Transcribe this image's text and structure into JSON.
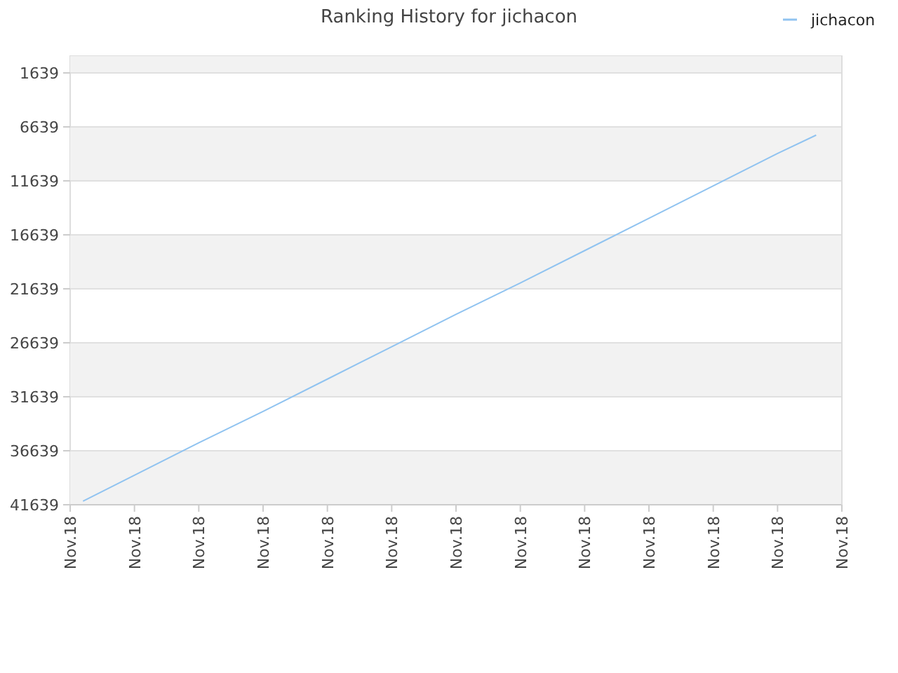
{
  "chart_data": {
    "type": "line",
    "title": "Ranking History for jichacon",
    "categories": [
      "Nov.18",
      null,
      null,
      null,
      null,
      "Nov.18",
      null,
      null,
      null,
      null,
      "Nov.18",
      null,
      null,
      null,
      null,
      "Nov.18",
      null,
      null,
      null,
      null,
      "Nov.18",
      null,
      null,
      null,
      null,
      "Nov.18",
      null,
      null,
      null,
      null,
      "Nov.18",
      null,
      null,
      null,
      null,
      "Nov.18",
      null,
      null,
      null,
      null,
      "Nov.18",
      null,
      null,
      null,
      null,
      "Nov.18",
      null,
      null,
      null,
      null,
      "Nov.18",
      null,
      null,
      null,
      null,
      "Nov.18",
      null,
      null,
      null,
      null,
      "Nov.18"
    ],
    "series": [
      {
        "name": "jichacon",
        "color": "#90c3f0",
        "values": [
          null,
          41300,
          null,
          null,
          null,
          38900,
          null,
          null,
          null,
          null,
          35900,
          null,
          null,
          null,
          null,
          33000,
          null,
          null,
          null,
          null,
          30000,
          null,
          null,
          null,
          null,
          27000,
          null,
          null,
          null,
          null,
          24000,
          null,
          null,
          null,
          null,
          21100,
          null,
          null,
          null,
          null,
          18100,
          null,
          null,
          null,
          null,
          15100,
          null,
          null,
          null,
          null,
          12100,
          null,
          null,
          null,
          null,
          9100,
          null,
          null,
          7400,
          null,
          null
        ]
      }
    ],
    "ylim": [
      41639,
      80
    ],
    "yticks": [
      1639,
      6639,
      11639,
      16639,
      21639,
      26639,
      31639,
      36639,
      41639
    ],
    "grid": "y",
    "legend": "top right",
    "marker": "none",
    "line_style": "solid"
  }
}
